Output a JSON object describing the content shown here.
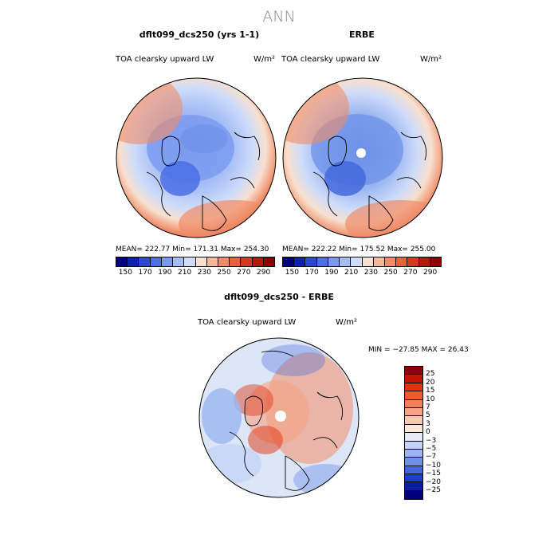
{
  "main_title": "ANN",
  "panel1": {
    "title": "dflt099_dcs250 (yrs 1-1)",
    "variable": "TOA clearsky upward LW",
    "unit": "W/m²",
    "stats": "MEAN= 222.77   Min= 171.31   Max= 254.30"
  },
  "panel2": {
    "title": "ERBE",
    "variable": "TOA clearsky upward LW",
    "unit": "W/m²",
    "stats": "MEAN= 222.22   Min= 175.52   Max= 255.00"
  },
  "panel3": {
    "title": "dflt099_dcs250 - ERBE",
    "variable": "TOA clearsky upward LW",
    "unit": "W/m²",
    "stats": "MIN = −27.85 MAX =   26.43"
  },
  "colorbar_top": {
    "ticks": [
      "150",
      "170",
      "190",
      "210",
      "230",
      "250",
      "270",
      "290"
    ],
    "colors": [
      "#00007a",
      "#0b20b4",
      "#2a48d8",
      "#4a6fe6",
      "#7a9af0",
      "#a6bef6",
      "#cfdcfa",
      "#f8e0cf",
      "#f6b89a",
      "#f08c68",
      "#e8623e",
      "#d63a1e",
      "#b41a0c",
      "#8c0000"
    ]
  },
  "colorbar_diff": {
    "ticks": [
      "25",
      "20",
      "15",
      "10",
      "7",
      "5",
      "3",
      "0",
      "−3",
      "−5",
      "−7",
      "−10",
      "−15",
      "−20",
      "−25"
    ],
    "colors": [
      "#8c0000",
      "#c01408",
      "#e0330f",
      "#ef5a2c",
      "#f4805a",
      "#f7a484",
      "#fac6b0",
      "#fde6da",
      "#e6ecfa",
      "#c4d4f6",
      "#9ab6f0",
      "#6e92e8",
      "#4468dc",
      "#1e3ec4",
      "#0a1ca0",
      "#00007a"
    ]
  }
}
